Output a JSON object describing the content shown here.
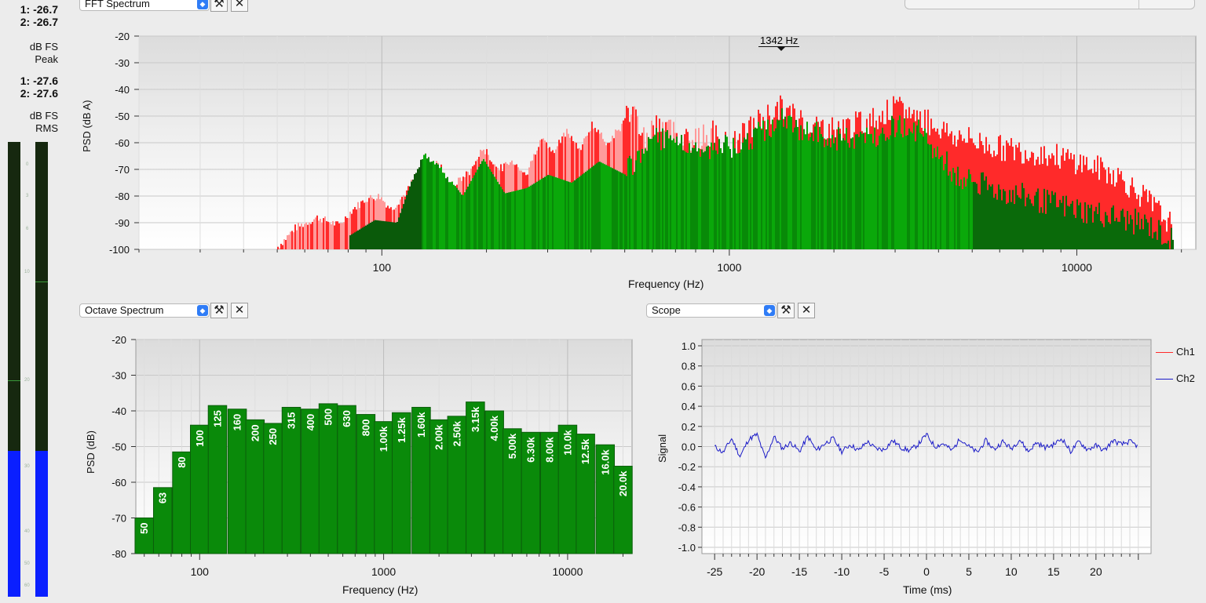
{
  "meters": {
    "peak_values": [
      "1: -26.7",
      "2: -26.7"
    ],
    "peak_unit": [
      "dB FS",
      "Peak"
    ],
    "rms_values": [
      "1: -27.6",
      "2: -27.6"
    ],
    "rms_unit": [
      "dB FS",
      "RMS"
    ],
    "scale_ticks": [
      "0",
      "3",
      "6",
      "10",
      "20",
      "30",
      "40",
      "50",
      "60"
    ],
    "level_fraction": 0.32,
    "fill_color": "#0a1fff"
  },
  "fft_panel": {
    "selector": "FFT Spectrum",
    "cursor_label": "1342 Hz"
  },
  "octave_panel": {
    "selector": "Octave Spectrum"
  },
  "scope_panel": {
    "selector": "Scope",
    "legend": [
      "Ch1",
      "Ch2"
    ]
  },
  "colors": {
    "ch1": "#ff2a2a",
    "ch2": "#1a1ac8",
    "bar_green": "#0a8a0a",
    "peak_pink": "#ff9a9a"
  },
  "chart_data": [
    {
      "type": "bar",
      "title": "",
      "xlabel": "Frequency (Hz)",
      "ylabel": "PSD (dB A)",
      "x_scale": "log",
      "xlim": [
        20,
        22000
      ],
      "ylim": [
        -100,
        -20
      ],
      "x_ticks": [
        "100",
        "1000",
        "10000"
      ],
      "y_ticks": [
        "-20",
        "-30",
        "-40",
        "-50",
        "-60",
        "-70",
        "-80",
        "-90",
        "-100"
      ],
      "grid": true,
      "peak_envelope": [
        {
          "f": 50,
          "db": -99
        },
        {
          "f": 56,
          "db": -92
        },
        {
          "f": 65,
          "db": -88
        },
        {
          "f": 75,
          "db": -91
        },
        {
          "f": 82,
          "db": -85
        },
        {
          "f": 90,
          "db": -81
        },
        {
          "f": 98,
          "db": -80
        },
        {
          "f": 106,
          "db": -85
        },
        {
          "f": 118,
          "db": -78
        },
        {
          "f": 132,
          "db": -65
        },
        {
          "f": 145,
          "db": -68
        },
        {
          "f": 160,
          "db": -76
        },
        {
          "f": 178,
          "db": -71
        },
        {
          "f": 195,
          "db": -62
        },
        {
          "f": 215,
          "db": -70
        },
        {
          "f": 238,
          "db": -67
        },
        {
          "f": 260,
          "db": -72
        },
        {
          "f": 285,
          "db": -58
        },
        {
          "f": 310,
          "db": -64
        },
        {
          "f": 340,
          "db": -55
        },
        {
          "f": 370,
          "db": -63
        },
        {
          "f": 400,
          "db": -53
        },
        {
          "f": 440,
          "db": -60
        },
        {
          "f": 480,
          "db": -55
        },
        {
          "f": 520,
          "db": -47
        },
        {
          "f": 570,
          "db": -58
        },
        {
          "f": 620,
          "db": -52
        },
        {
          "f": 700,
          "db": -56
        },
        {
          "f": 800,
          "db": -59
        },
        {
          "f": 900,
          "db": -56
        },
        {
          "f": 1000,
          "db": -62
        },
        {
          "f": 1200,
          "db": -52
        },
        {
          "f": 1400,
          "db": -47
        },
        {
          "f": 1700,
          "db": -53
        },
        {
          "f": 2000,
          "db": -55
        },
        {
          "f": 2500,
          "db": -52
        },
        {
          "f": 3000,
          "db": -47
        },
        {
          "f": 3500,
          "db": -50
        },
        {
          "f": 4500,
          "db": -58
        },
        {
          "f": 6000,
          "db": -62
        },
        {
          "f": 8000,
          "db": -64
        },
        {
          "f": 10000,
          "db": -67
        },
        {
          "f": 13000,
          "db": -72
        },
        {
          "f": 16000,
          "db": -82
        },
        {
          "f": 19000,
          "db": -92
        }
      ],
      "rms_envelope": [
        {
          "f": 80,
          "db": -95
        },
        {
          "f": 95,
          "db": -89
        },
        {
          "f": 110,
          "db": -90
        },
        {
          "f": 130,
          "db": -63
        },
        {
          "f": 150,
          "db": -70
        },
        {
          "f": 170,
          "db": -80
        },
        {
          "f": 195,
          "db": -66
        },
        {
          "f": 225,
          "db": -79
        },
        {
          "f": 260,
          "db": -77
        },
        {
          "f": 300,
          "db": -72
        },
        {
          "f": 350,
          "db": -75
        },
        {
          "f": 420,
          "db": -67
        },
        {
          "f": 500,
          "db": -72
        },
        {
          "f": 600,
          "db": -57
        },
        {
          "f": 700,
          "db": -60
        },
        {
          "f": 850,
          "db": -63
        },
        {
          "f": 1000,
          "db": -60
        },
        {
          "f": 1200,
          "db": -57
        },
        {
          "f": 1400,
          "db": -51
        },
        {
          "f": 1700,
          "db": -56
        },
        {
          "f": 2000,
          "db": -59
        },
        {
          "f": 2500,
          "db": -58
        },
        {
          "f": 3000,
          "db": -53
        },
        {
          "f": 3500,
          "db": -55
        },
        {
          "f": 4500,
          "db": -73
        },
        {
          "f": 6000,
          "db": -78
        },
        {
          "f": 8000,
          "db": -82
        },
        {
          "f": 10000,
          "db": -85
        },
        {
          "f": 13000,
          "db": -88
        },
        {
          "f": 16000,
          "db": -91
        },
        {
          "f": 19000,
          "db": -97
        }
      ]
    },
    {
      "type": "bar",
      "title": "",
      "xlabel": "Frequency (Hz)",
      "ylabel": "PSD (dB)",
      "x_scale": "log",
      "xlim": [
        45,
        22400
      ],
      "ylim": [
        -80,
        -20
      ],
      "x_ticks": [
        "100",
        "1000",
        "10000"
      ],
      "y_ticks": [
        "-20",
        "-30",
        "-40",
        "-50",
        "-60",
        "-70",
        "-80"
      ],
      "grid": true,
      "categories": [
        "50",
        "63",
        "80",
        "100",
        "125",
        "160",
        "200",
        "250",
        "315",
        "400",
        "500",
        "630",
        "800",
        "1.00k",
        "1.25k",
        "1.60k",
        "2.00k",
        "2.50k",
        "3.15k",
        "4.00k",
        "5.00k",
        "6.30k",
        "8.00k",
        "10.0k",
        "12.5k",
        "16.0k",
        "20.0k"
      ],
      "center_hz": [
        50,
        63,
        80,
        100,
        125,
        160,
        200,
        250,
        315,
        400,
        500,
        630,
        800,
        1000,
        1250,
        1600,
        2000,
        2500,
        3150,
        4000,
        5000,
        6300,
        8000,
        10000,
        12500,
        16000,
        20000
      ],
      "series": [
        {
          "name": "",
          "values": [
            -70.5,
            -62,
            -52,
            -44.5,
            -38.5,
            -39.5,
            -43,
            -44,
            -41,
            -41,
            -40,
            -39,
            -41.5,
            -43.5,
            -41,
            -39.5,
            -43,
            -42,
            -38,
            -40.5,
            -45.5,
            -47.5,
            -47,
            -46,
            -47.5,
            -51,
            -56.5
          ]
        },
        {
          "name": "",
          "values": [
            -70,
            -61.5,
            -51.5,
            -44,
            -38.5,
            -39.5,
            -42.5,
            -43.5,
            -39,
            -39.5,
            -38,
            -38.5,
            -41,
            -43,
            -40.5,
            -39,
            -42.5,
            -41.5,
            -37.5,
            -40,
            -45,
            -46,
            -46,
            -44,
            -46.5,
            -49.5,
            -55.5
          ]
        }
      ]
    },
    {
      "type": "line",
      "title": "",
      "xlabel": "Time (ms)",
      "ylabel": "Signal",
      "xlim": [
        -25,
        25
      ],
      "ylim": [
        -1.0,
        1.0
      ],
      "x_ticks": [
        "-25",
        "-20",
        "-15",
        "-10",
        "-5",
        "0",
        "5",
        "10",
        "15",
        "20"
      ],
      "y_ticks": [
        "1.0",
        "0.8",
        "0.6",
        "0.4",
        "0.2",
        "0.0",
        "-0.2",
        "-0.4",
        "-0.6",
        "-0.8",
        "-1.0"
      ],
      "grid": true,
      "legend_position": "right",
      "series": [
        {
          "name": "Ch1",
          "x": [],
          "y": []
        },
        {
          "name": "Ch2",
          "x": [
            -25,
            -24,
            -23,
            -22,
            -21,
            -20,
            -19,
            -18,
            -17,
            -16,
            -15,
            -14,
            -13,
            -12,
            -11,
            -10,
            -9,
            -8,
            -7,
            -6,
            -5,
            -4,
            -3,
            -2,
            -1,
            0,
            1,
            2,
            3,
            4,
            5,
            6,
            7,
            8,
            9,
            10,
            11,
            12,
            13,
            14,
            15,
            16,
            17,
            18,
            19,
            20,
            21,
            22,
            23,
            24,
            25
          ],
          "y": [
            0.0,
            -0.06,
            0.08,
            -0.1,
            0.07,
            0.12,
            -0.12,
            0.1,
            -0.02,
            0.04,
            -0.05,
            0.1,
            -0.04,
            0.03,
            0.08,
            -0.05,
            0.02,
            -0.04,
            0.05,
            -0.02,
            -0.03,
            0.06,
            -0.01,
            -0.04,
            0.02,
            0.12,
            0.0,
            0.03,
            -0.04,
            0.08,
            0.0,
            -0.06,
            0.06,
            -0.03,
            0.05,
            -0.02,
            0.07,
            -0.05,
            0.04,
            -0.01,
            0.02,
            0.08,
            -0.05,
            0.05,
            -0.03,
            0.01,
            -0.04,
            0.06,
            0.02,
            0.05,
            0.0
          ]
        }
      ]
    }
  ]
}
